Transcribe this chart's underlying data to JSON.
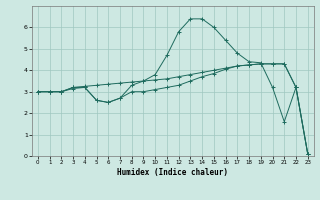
{
  "xlabel": "Humidex (Indice chaleur)",
  "xlim": [
    -0.5,
    23.5
  ],
  "ylim": [
    0,
    7
  ],
  "xticks": [
    0,
    1,
    2,
    3,
    4,
    5,
    6,
    7,
    8,
    9,
    10,
    11,
    12,
    13,
    14,
    15,
    16,
    17,
    18,
    19,
    20,
    21,
    22,
    23
  ],
  "yticks": [
    0,
    1,
    2,
    3,
    4,
    5,
    6
  ],
  "bg_color": "#cde8e2",
  "grid_color": "#a0c8c0",
  "line_color": "#1e6b5e",
  "line1_x": [
    0,
    1,
    2,
    3,
    4,
    5,
    6,
    7,
    8,
    9,
    10,
    11,
    12,
    13,
    14,
    15,
    16,
    17,
    18,
    19,
    20,
    21,
    22,
    23
  ],
  "line1_y": [
    3.0,
    3.0,
    3.0,
    3.2,
    3.25,
    3.3,
    3.35,
    3.4,
    3.45,
    3.5,
    3.55,
    3.6,
    3.7,
    3.8,
    3.9,
    4.0,
    4.1,
    4.2,
    4.25,
    4.3,
    4.3,
    4.3,
    3.2,
    0.1
  ],
  "line2_x": [
    0,
    1,
    2,
    3,
    4,
    5,
    6,
    7,
    8,
    9,
    10,
    11,
    12,
    13,
    14,
    15,
    16,
    17,
    18,
    19,
    20,
    21,
    22,
    23
  ],
  "line2_y": [
    3.0,
    3.0,
    3.0,
    3.15,
    3.2,
    2.6,
    2.5,
    2.7,
    3.0,
    3.0,
    3.1,
    3.2,
    3.3,
    3.5,
    3.7,
    3.85,
    4.05,
    4.2,
    4.25,
    4.3,
    4.3,
    4.3,
    3.2,
    0.1
  ],
  "line3_x": [
    0,
    1,
    2,
    3,
    4,
    5,
    6,
    7,
    8,
    9,
    10,
    11,
    12,
    13,
    14,
    15,
    16,
    17,
    18,
    19,
    20,
    21,
    22,
    23
  ],
  "line3_y": [
    3.0,
    3.0,
    3.0,
    3.2,
    3.2,
    2.6,
    2.5,
    2.7,
    3.3,
    3.5,
    3.8,
    4.7,
    5.8,
    6.4,
    6.4,
    6.0,
    5.4,
    4.8,
    4.4,
    4.35,
    3.2,
    1.6,
    3.2,
    0.1
  ]
}
